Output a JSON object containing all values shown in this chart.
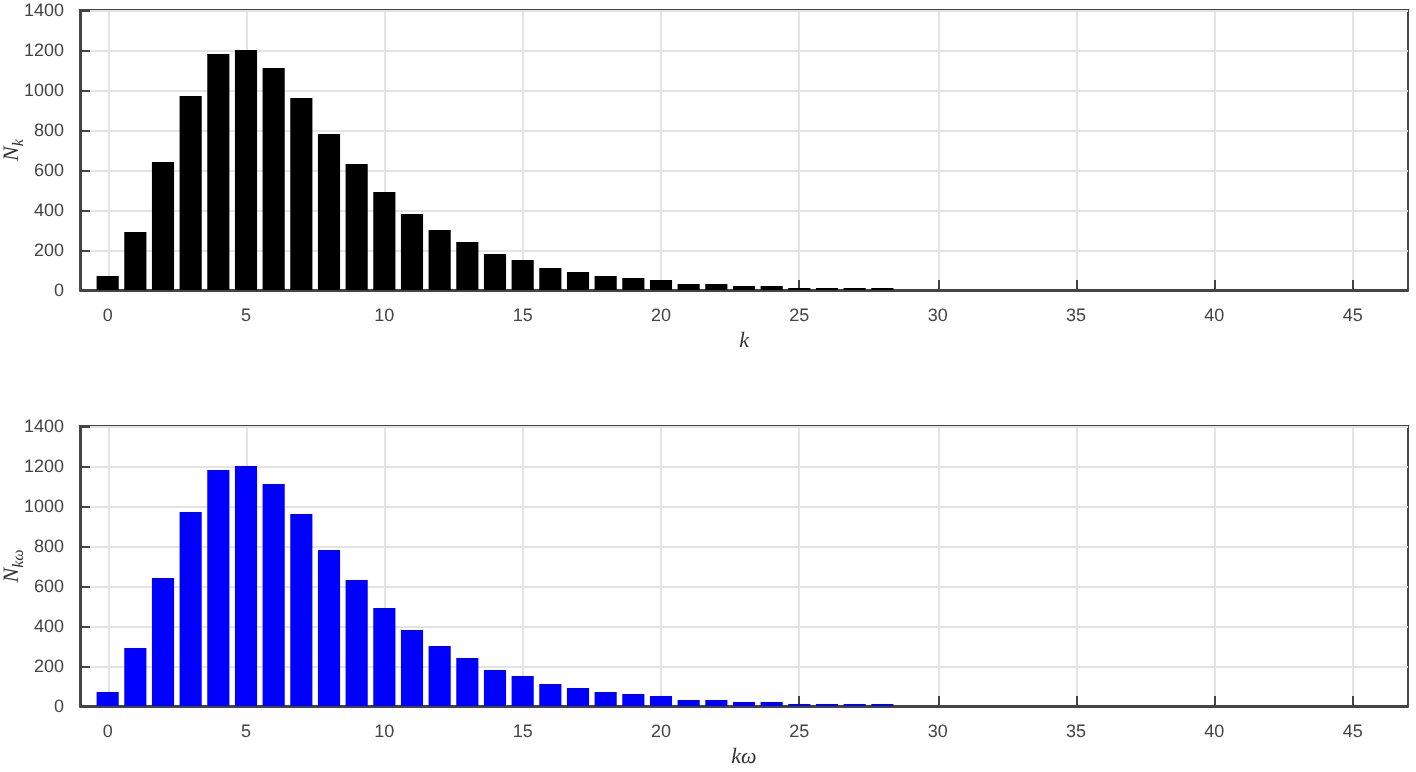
{
  "chart_data": [
    {
      "type": "bar",
      "xlabel": "k",
      "ylabel": "N$_{k}$",
      "x": [
        0,
        1,
        2,
        3,
        4,
        5,
        6,
        7,
        8,
        9,
        10,
        11,
        12,
        13,
        14,
        15,
        16,
        17,
        18,
        19,
        20,
        21,
        22,
        23,
        24,
        25,
        26,
        27,
        28
      ],
      "values": [
        70,
        290,
        640,
        970,
        1180,
        1200,
        1110,
        960,
        780,
        630,
        490,
        380,
        300,
        240,
        180,
        150,
        110,
        90,
        70,
        60,
        50,
        30,
        30,
        20,
        20,
        10,
        10,
        10,
        10
      ],
      "color": "#000000",
      "xlim": [
        -1,
        47
      ],
      "xticks": [
        0,
        5,
        10,
        15,
        20,
        25,
        30,
        35,
        40,
        45
      ],
      "ylim": [
        0,
        1400
      ],
      "yticks": [
        0,
        200,
        400,
        600,
        800,
        1000,
        1200,
        1400
      ],
      "grid": true
    },
    {
      "type": "bar",
      "xlabel": "kω",
      "ylabel": "N$_{kω}$",
      "x": [
        0,
        1,
        2,
        3,
        4,
        5,
        6,
        7,
        8,
        9,
        10,
        11,
        12,
        13,
        14,
        15,
        16,
        17,
        18,
        19,
        20,
        21,
        22,
        23,
        24,
        25,
        26,
        27,
        28
      ],
      "values": [
        70,
        290,
        640,
        970,
        1180,
        1200,
        1110,
        960,
        780,
        630,
        490,
        380,
        300,
        240,
        180,
        150,
        110,
        90,
        70,
        60,
        50,
        30,
        30,
        20,
        20,
        10,
        10,
        10,
        10
      ],
      "color": "#0000ff",
      "xlim": [
        -1,
        47
      ],
      "xticks": [
        0,
        5,
        10,
        15,
        20,
        25,
        30,
        35,
        40,
        45
      ],
      "ylim": [
        0,
        1400
      ],
      "yticks": [
        0,
        200,
        400,
        600,
        800,
        1000,
        1200,
        1400
      ],
      "grid": true
    }
  ]
}
